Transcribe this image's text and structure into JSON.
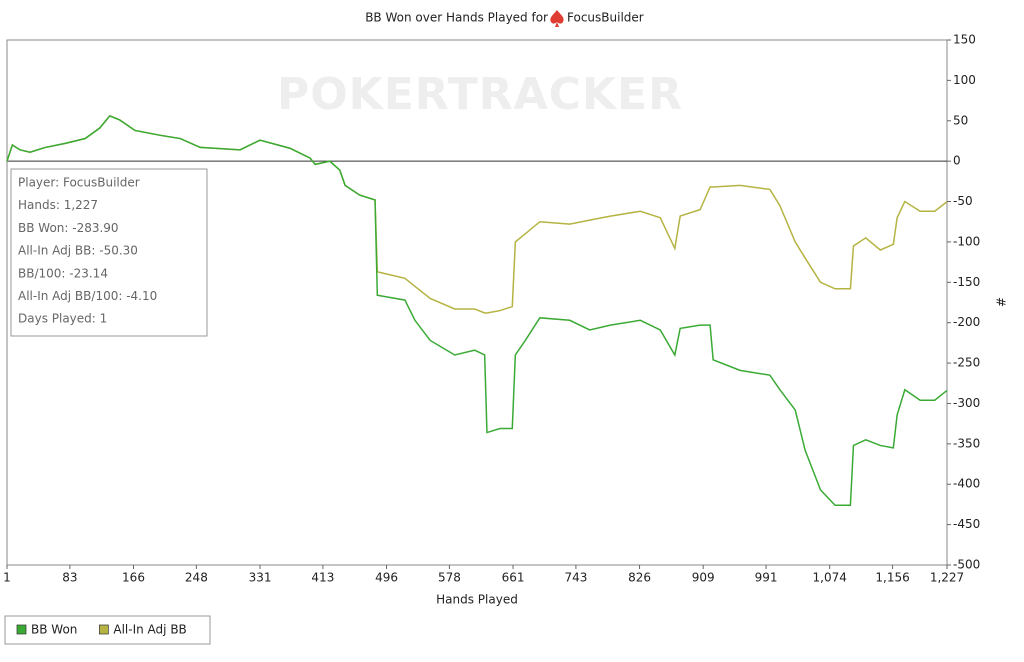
{
  "chart_data": {
    "type": "line",
    "title": "BB Won over Hands Played for",
    "player": "FocusBuilder",
    "watermark": "POKERTRACKER",
    "x_label": "Hands Played",
    "y_label": "#",
    "x": [
      1,
      8,
      18,
      31,
      51,
      77,
      103,
      122,
      135,
      148,
      168,
      201,
      227,
      253,
      305,
      331,
      370,
      396,
      403,
      422,
      435,
      442,
      461,
      481,
      484,
      520,
      533,
      553,
      585,
      611,
      624,
      627,
      644,
      660,
      664,
      677,
      696,
      735,
      761,
      788,
      827,
      853,
      872,
      879,
      905,
      918,
      922,
      957,
      996,
      1009,
      1029,
      1042,
      1062,
      1081,
      1101,
      1105,
      1121,
      1140,
      1157,
      1162,
      1172,
      1192,
      1211,
      1227
    ],
    "series": [
      {
        "name": "BB Won",
        "color": "#3aaa35",
        "values": [
          0,
          20,
          14,
          11,
          17,
          22,
          28,
          41,
          56,
          51,
          38,
          32,
          28,
          17,
          14,
          26,
          16,
          4,
          -4,
          0,
          -11,
          -30,
          -42,
          -48,
          -166,
          -172,
          -197,
          -222,
          -240,
          -234,
          -240,
          -336,
          -331,
          -331,
          -240,
          -222,
          -194,
          -197,
          -209,
          -203,
          -197,
          -209,
          -240,
          -207,
          -203,
          -203,
          -246,
          -259,
          -265,
          -283,
          -308,
          -358,
          -407,
          -426,
          -426,
          -352,
          -345,
          -352,
          -355,
          -314,
          -283,
          -296,
          -296,
          -283.9
        ]
      },
      {
        "name": "All-In Adj BB",
        "color": "#b5b342",
        "values": [
          0,
          20,
          14,
          11,
          17,
          22,
          28,
          41,
          56,
          51,
          38,
          32,
          28,
          17,
          14,
          26,
          16,
          4,
          -4,
          0,
          -11,
          -30,
          -42,
          -48,
          -137,
          -145,
          -155,
          -170,
          -183,
          -183,
          -188,
          -188,
          -185,
          -180,
          -100,
          -90,
          -75,
          -78,
          -73,
          -68,
          -62,
          -70,
          -108,
          -68,
          -60,
          -32,
          -32,
          -30,
          -35,
          -55,
          -100,
          -120,
          -150,
          -158,
          -158,
          -105,
          -95,
          -110,
          -103,
          -70,
          -50,
          -62,
          -62,
          -50.3
        ]
      }
    ],
    "xlim": [
      1,
      1227
    ],
    "xticks": [
      1,
      83,
      166,
      248,
      331,
      413,
      496,
      578,
      661,
      743,
      826,
      909,
      991,
      {
        "value": 1074,
        "label": "1,074"
      },
      {
        "value": 1156,
        "label": "1,156"
      },
      {
        "value": 1227,
        "label": "1,227"
      }
    ],
    "ylim": [
      -500,
      150
    ],
    "yticks": [
      -500,
      -450,
      -400,
      -350,
      -300,
      -250,
      -200,
      -150,
      -100,
      -50,
      0,
      50,
      100,
      150
    ],
    "reference_line": 0,
    "grid": false,
    "legend": "bottom-left",
    "info_box": [
      "Player: FocusBuilder",
      "Hands: 1,227",
      "BB Won: -283.90",
      "All-In Adj BB: -50.30",
      "BB/100: -23.14",
      "All-In Adj BB/100: -4.10",
      "Days Played: 1"
    ]
  }
}
